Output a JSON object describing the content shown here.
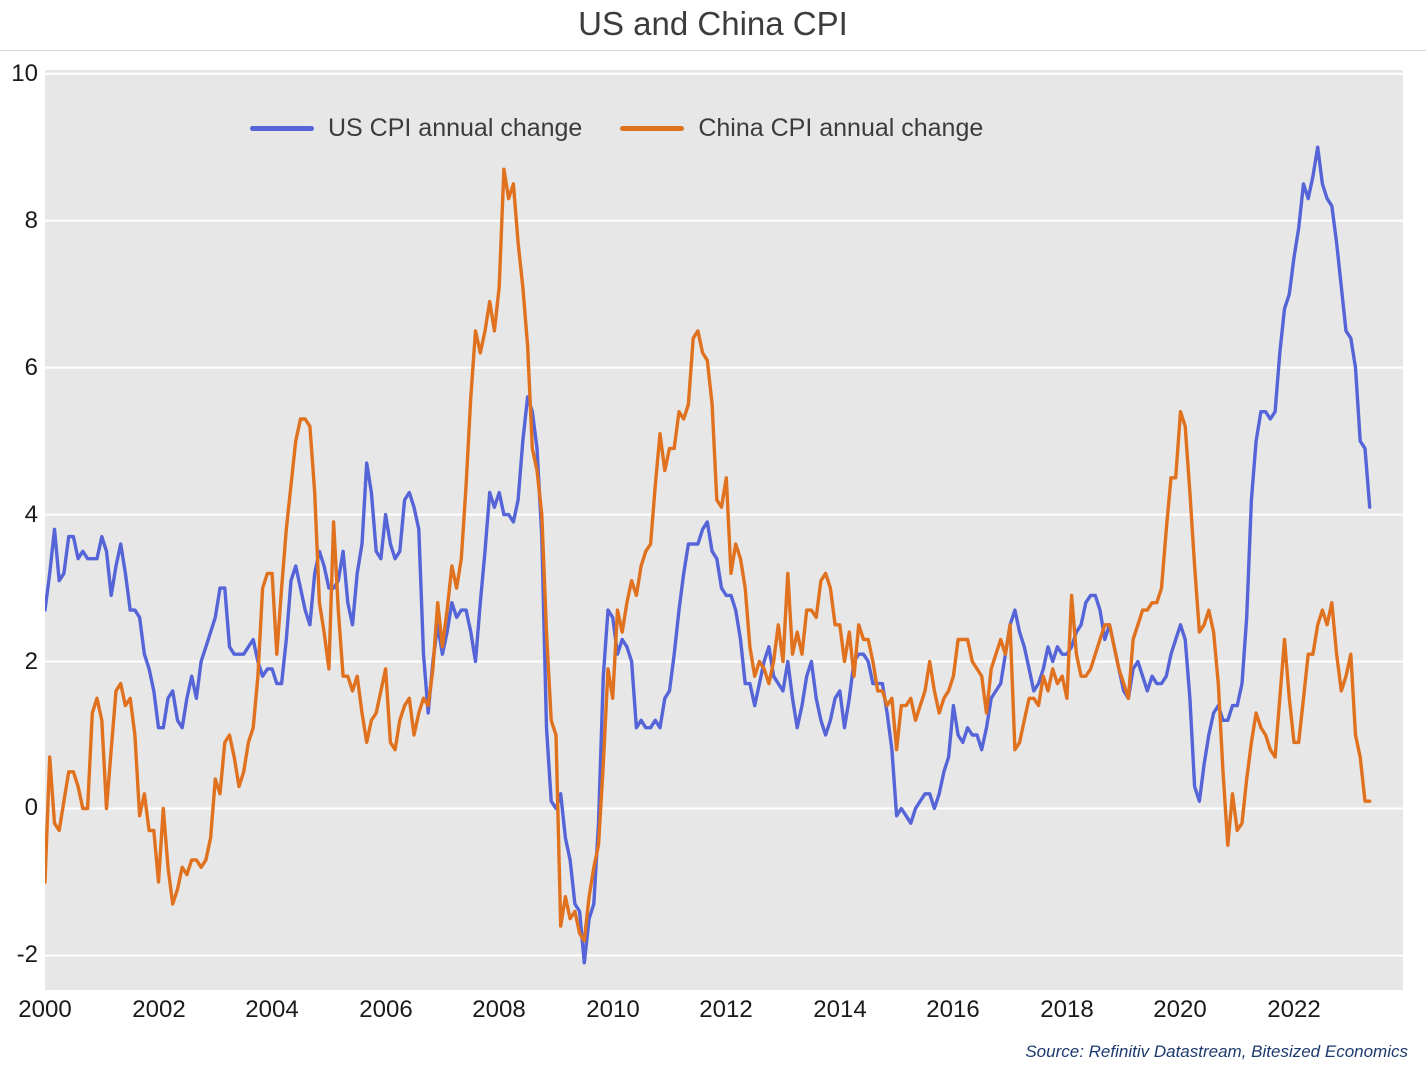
{
  "title": "US and China CPI",
  "source": "Source: Refinitiv Datastream, Bitesized Economics",
  "colors": {
    "us_line": "#5565d8",
    "china_line": "#e0721f",
    "plot_background": "#e7e7e8",
    "gridline": "#ffffff",
    "source_text": "#1d3a6e"
  },
  "chart_data": {
    "type": "line",
    "title": "US and China CPI",
    "xlabel": "",
    "ylabel": "",
    "x_start_year": 2000,
    "x_frequency": "monthly",
    "xlim": [
      2000,
      2023.92
    ],
    "ylim": [
      -2.47,
      10.05
    ],
    "y_ticks": [
      10,
      8,
      6,
      4,
      2,
      0,
      -2
    ],
    "x_ticks": [
      2000,
      2002,
      2004,
      2006,
      2008,
      2010,
      2012,
      2014,
      2016,
      2018,
      2020,
      2022
    ],
    "grid": "horizontal white lines on gray panel",
    "legend_position": "top-left inside plot",
    "series": [
      {
        "key": "us-cpi",
        "name": "US CPI annual change",
        "color": "#5565d8",
        "start": "2000-01",
        "values": [
          2.7,
          3.2,
          3.8,
          3.1,
          3.2,
          3.7,
          3.7,
          3.4,
          3.5,
          3.4,
          3.4,
          3.4,
          3.7,
          3.5,
          2.9,
          3.3,
          3.6,
          3.2,
          2.7,
          2.7,
          2.6,
          2.1,
          1.9,
          1.6,
          1.1,
          1.1,
          1.5,
          1.6,
          1.2,
          1.1,
          1.5,
          1.8,
          1.5,
          2.0,
          2.2,
          2.4,
          2.6,
          3.0,
          3.0,
          2.2,
          2.1,
          2.1,
          2.1,
          2.2,
          2.3,
          2.0,
          1.8,
          1.9,
          1.9,
          1.7,
          1.7,
          2.3,
          3.1,
          3.3,
          3.0,
          2.7,
          2.5,
          3.2,
          3.5,
          3.3,
          3.0,
          3.0,
          3.1,
          3.5,
          2.8,
          2.5,
          3.2,
          3.6,
          4.7,
          4.3,
          3.5,
          3.4,
          4.0,
          3.6,
          3.4,
          3.5,
          4.2,
          4.3,
          4.1,
          3.8,
          2.1,
          1.3,
          2.0,
          2.5,
          2.1,
          2.4,
          2.8,
          2.6,
          2.7,
          2.7,
          2.4,
          2.0,
          2.8,
          3.5,
          4.3,
          4.1,
          4.3,
          4.0,
          4.0,
          3.9,
          4.2,
          5.0,
          5.6,
          5.4,
          4.9,
          3.7,
          1.1,
          0.1,
          0.0,
          0.2,
          -0.4,
          -0.7,
          -1.3,
          -1.4,
          -2.1,
          -1.5,
          -1.3,
          -0.2,
          1.8,
          2.7,
          2.6,
          2.1,
          2.3,
          2.2,
          2.0,
          1.1,
          1.2,
          1.1,
          1.1,
          1.2,
          1.1,
          1.5,
          1.6,
          2.1,
          2.7,
          3.2,
          3.6,
          3.6,
          3.6,
          3.8,
          3.9,
          3.5,
          3.4,
          3.0,
          2.9,
          2.9,
          2.7,
          2.3,
          1.7,
          1.7,
          1.4,
          1.7,
          2.0,
          2.2,
          1.8,
          1.7,
          1.6,
          2.0,
          1.5,
          1.1,
          1.4,
          1.8,
          2.0,
          1.5,
          1.2,
          1.0,
          1.2,
          1.5,
          1.6,
          1.1,
          1.5,
          2.0,
          2.1,
          2.1,
          2.0,
          1.7,
          1.7,
          1.7,
          1.3,
          0.8,
          -0.1,
          0.0,
          -0.1,
          -0.2,
          0.0,
          0.1,
          0.2,
          0.2,
          0.0,
          0.2,
          0.5,
          0.7,
          1.4,
          1.0,
          0.9,
          1.1,
          1.0,
          1.0,
          0.8,
          1.1,
          1.5,
          1.6,
          1.7,
          2.1,
          2.5,
          2.7,
          2.4,
          2.2,
          1.9,
          1.6,
          1.7,
          1.9,
          2.2,
          2.0,
          2.2,
          2.1,
          2.1,
          2.2,
          2.4,
          2.5,
          2.8,
          2.9,
          2.9,
          2.7,
          2.3,
          2.5,
          2.2,
          1.9,
          1.6,
          1.5,
          1.9,
          2.0,
          1.8,
          1.6,
          1.8,
          1.7,
          1.7,
          1.8,
          2.1,
          2.3,
          2.5,
          2.3,
          1.5,
          0.3,
          0.1,
          0.6,
          1.0,
          1.3,
          1.4,
          1.2,
          1.2,
          1.4,
          1.4,
          1.7,
          2.6,
          4.2,
          5.0,
          5.4,
          5.4,
          5.3,
          5.4,
          6.2,
          6.8,
          7.0,
          7.5,
          7.9,
          8.5,
          8.3,
          8.6,
          9.0,
          8.5,
          8.3,
          8.2,
          7.7,
          7.1,
          6.5,
          6.4,
          6.0,
          5.0,
          4.9,
          4.1
        ]
      },
      {
        "key": "china-cpi",
        "name": "China CPI annual change",
        "color": "#e0721f",
        "start": "2000-01",
        "values": [
          -1.0,
          0.7,
          -0.2,
          -0.3,
          0.1,
          0.5,
          0.5,
          0.3,
          0.0,
          0.0,
          1.3,
          1.5,
          1.2,
          0.0,
          0.8,
          1.6,
          1.7,
          1.4,
          1.5,
          1.0,
          -0.1,
          0.2,
          -0.3,
          -0.3,
          -1.0,
          0.0,
          -0.8,
          -1.3,
          -1.1,
          -0.8,
          -0.9,
          -0.7,
          -0.7,
          -0.8,
          -0.7,
          -0.4,
          0.4,
          0.2,
          0.9,
          1.0,
          0.7,
          0.3,
          0.5,
          0.9,
          1.1,
          1.8,
          3.0,
          3.2,
          3.2,
          2.1,
          3.0,
          3.8,
          4.4,
          5.0,
          5.3,
          5.3,
          5.2,
          4.3,
          2.8,
          2.4,
          1.9,
          3.9,
          2.7,
          1.8,
          1.8,
          1.6,
          1.8,
          1.3,
          0.9,
          1.2,
          1.3,
          1.6,
          1.9,
          0.9,
          0.8,
          1.2,
          1.4,
          1.5,
          1.0,
          1.3,
          1.5,
          1.4,
          1.9,
          2.8,
          2.2,
          2.7,
          3.3,
          3.0,
          3.4,
          4.4,
          5.6,
          6.5,
          6.2,
          6.5,
          6.9,
          6.5,
          7.1,
          8.7,
          8.3,
          8.5,
          7.7,
          7.1,
          6.3,
          4.9,
          4.6,
          4.0,
          2.4,
          1.2,
          1.0,
          -1.6,
          -1.2,
          -1.5,
          -1.4,
          -1.7,
          -1.8,
          -1.2,
          -0.8,
          -0.5,
          0.6,
          1.9,
          1.5,
          2.7,
          2.4,
          2.8,
          3.1,
          2.9,
          3.3,
          3.5,
          3.6,
          4.4,
          5.1,
          4.6,
          4.9,
          4.9,
          5.4,
          5.3,
          5.5,
          6.4,
          6.5,
          6.2,
          6.1,
          5.5,
          4.2,
          4.1,
          4.5,
          3.2,
          3.6,
          3.4,
          3.0,
          2.2,
          1.8,
          2.0,
          1.9,
          1.7,
          2.0,
          2.5,
          2.0,
          3.2,
          2.1,
          2.4,
          2.1,
          2.7,
          2.7,
          2.6,
          3.1,
          3.2,
          3.0,
          2.5,
          2.5,
          2.0,
          2.4,
          1.8,
          2.5,
          2.3,
          2.3,
          2.0,
          1.6,
          1.6,
          1.4,
          1.5,
          0.8,
          1.4,
          1.4,
          1.5,
          1.2,
          1.4,
          1.6,
          2.0,
          1.6,
          1.3,
          1.5,
          1.6,
          1.8,
          2.3,
          2.3,
          2.3,
          2.0,
          1.9,
          1.8,
          1.3,
          1.9,
          2.1,
          2.3,
          2.1,
          2.5,
          0.8,
          0.9,
          1.2,
          1.5,
          1.5,
          1.4,
          1.8,
          1.6,
          1.9,
          1.7,
          1.8,
          1.5,
          2.9,
          2.1,
          1.8,
          1.8,
          1.9,
          2.1,
          2.3,
          2.5,
          2.5,
          2.2,
          1.9,
          1.7,
          1.5,
          2.3,
          2.5,
          2.7,
          2.7,
          2.8,
          2.8,
          3.0,
          3.8,
          4.5,
          4.5,
          5.4,
          5.2,
          4.3,
          3.3,
          2.4,
          2.5,
          2.7,
          2.4,
          1.7,
          0.5,
          -0.5,
          0.2,
          -0.3,
          -0.2,
          0.4,
          0.9,
          1.3,
          1.1,
          1.0,
          0.8,
          0.7,
          1.5,
          2.3,
          1.5,
          0.9,
          0.9,
          1.5,
          2.1,
          2.1,
          2.5,
          2.7,
          2.5,
          2.8,
          2.1,
          1.6,
          1.8,
          2.1,
          1.0,
          0.7,
          0.1,
          0.1
        ]
      }
    ]
  }
}
